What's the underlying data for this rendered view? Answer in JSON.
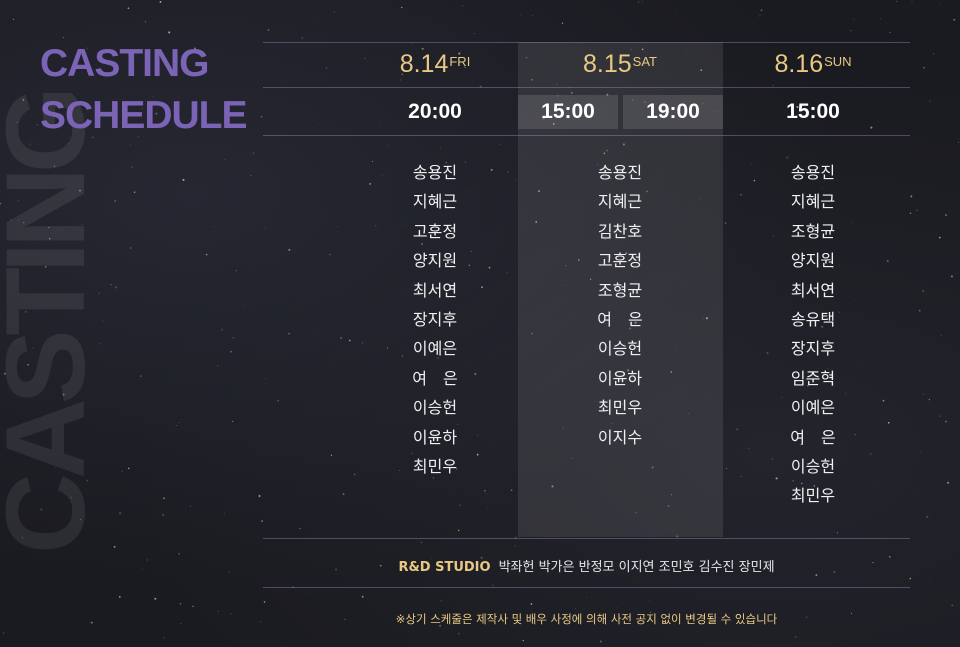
{
  "background_word": "CASTING",
  "title": {
    "line1": "CASTING",
    "line2": "SCHEDULE"
  },
  "days": [
    {
      "date": "8.14",
      "weekday": "FRI",
      "times": [
        "20:00"
      ]
    },
    {
      "date": "8.15",
      "weekday": "SAT",
      "times": [
        "15:00",
        "19:00"
      ]
    },
    {
      "date": "8.16",
      "weekday": "SUN",
      "times": [
        "15:00"
      ]
    }
  ],
  "casts": [
    [
      "송용진",
      "지혜근",
      "고훈정",
      "양지원",
      "최서연",
      "장지후",
      "이예은",
      "여　은",
      "이승헌",
      "이윤하",
      "최민우"
    ],
    [
      "송용진",
      "지혜근",
      "김찬호",
      "고훈정",
      "조형균",
      "여　은",
      "이승헌",
      "이윤하",
      "최민우",
      "이지수"
    ],
    [
      "송용진",
      "지혜근",
      "조형균",
      "양지원",
      "최서연",
      "송유택",
      "장지후",
      "임준혁",
      "이예은",
      "여　은",
      "이승헌",
      "최민우"
    ]
  ],
  "studio": {
    "label": "R&D STUDIO",
    "members": "박좌헌 박가은 반정모 이지연 조민호 김수진 장민제"
  },
  "notice": "※상기 스케줄은 제작사 및 배우 사정에 의해 사전 공지 없이 변경될 수 있습니다",
  "colors": {
    "title": "#7b63b6",
    "date": "#e8c984",
    "background": "#1a1b20"
  }
}
